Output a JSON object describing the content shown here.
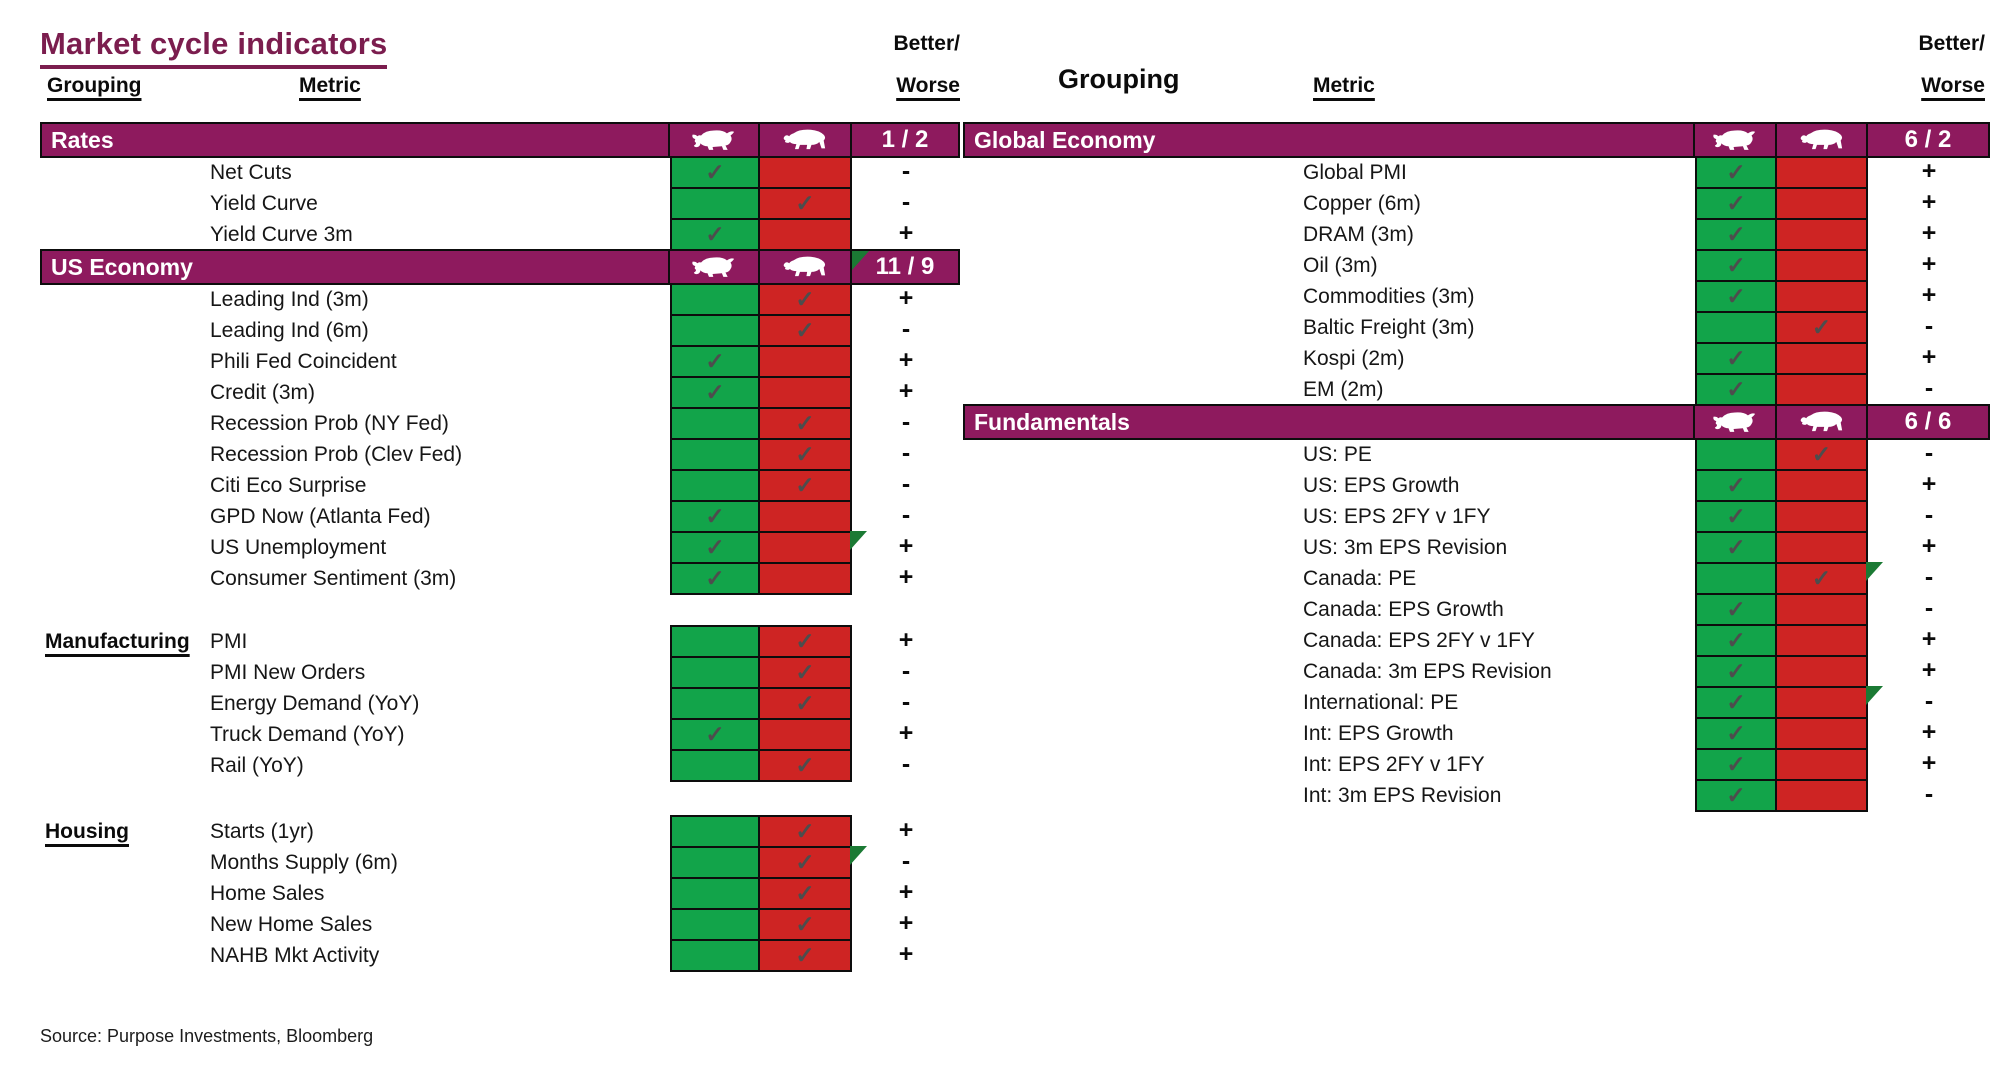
{
  "title": "Market cycle indicators",
  "source": "Source: Purpose Investments, Bloomberg",
  "column_headers": {
    "grouping": "Grouping",
    "metric": "Metric",
    "better": "Better/",
    "worse": "Worse"
  },
  "icons": {
    "bull": "bull-icon",
    "bear": "bear-icon",
    "flag": "flag-triangle-icon",
    "check_glyph": "✓"
  },
  "colors": {
    "band_purple": "#8E1A5E",
    "title_magenta": "#7B1D4E",
    "bull_green": "#12A44A",
    "bear_red": "#CE2423",
    "flag_green": "#1B7A34",
    "check_gray": "#4D4D4D"
  },
  "left_table": {
    "sections": [
      {
        "name": "Rates",
        "band": true,
        "score": "1 / 2",
        "score_flag": false,
        "rows": [
          {
            "metric": "Net Cuts",
            "check": "bull",
            "bw": "-",
            "flag": false
          },
          {
            "metric": "Yield Curve",
            "check": "bear",
            "bw": "-",
            "flag": false
          },
          {
            "metric": "Yield Curve 3m",
            "check": "bull",
            "bw": "+",
            "flag": false
          }
        ]
      },
      {
        "name": "US Economy",
        "band": true,
        "score": "11 / 9",
        "score_flag": true,
        "rows": [
          {
            "metric": "Leading Ind (3m)",
            "check": "bear",
            "bw": "+",
            "flag": false
          },
          {
            "metric": "Leading Ind (6m)",
            "check": "bear",
            "bw": "-",
            "flag": false
          },
          {
            "metric": "Phili Fed Coincident",
            "check": "bull",
            "bw": "+",
            "flag": false
          },
          {
            "metric": "Credit (3m)",
            "check": "bull",
            "bw": "+",
            "flag": false
          },
          {
            "metric": "Recession Prob (NY Fed)",
            "check": "bear",
            "bw": "-",
            "flag": false
          },
          {
            "metric": "Recession Prob (Clev Fed)",
            "check": "bear",
            "bw": "-",
            "flag": false
          },
          {
            "metric": "Citi Eco Surprise",
            "check": "bear",
            "bw": "-",
            "flag": false
          },
          {
            "metric": "GPD Now (Atlanta Fed)",
            "check": "bull",
            "bw": "-",
            "flag": false
          },
          {
            "metric": "US Unemployment",
            "check": "bull",
            "bw": "+",
            "flag": true
          },
          {
            "metric": "Consumer Sentiment (3m)",
            "check": "bull",
            "bw": "+",
            "flag": false
          }
        ]
      },
      {
        "name": "Manufacturing",
        "band": false,
        "score": "",
        "score_flag": false,
        "rows": [
          {
            "metric": "PMI",
            "check": "bear",
            "bw": "+",
            "flag": false
          },
          {
            "metric": "PMI New Orders",
            "check": "bear",
            "bw": "-",
            "flag": false
          },
          {
            "metric": "Energy Demand (YoY)",
            "check": "bear",
            "bw": "-",
            "flag": false
          },
          {
            "metric": "Truck Demand (YoY)",
            "check": "bull",
            "bw": "+",
            "flag": false
          },
          {
            "metric": "Rail (YoY)",
            "check": "bear",
            "bw": "-",
            "flag": false
          }
        ]
      },
      {
        "name": "Housing",
        "band": false,
        "score": "",
        "score_flag": false,
        "rows": [
          {
            "metric": "Starts (1yr)",
            "check": "bear",
            "bw": "+",
            "flag": false
          },
          {
            "metric": "Months Supply (6m)",
            "check": "bear",
            "bw": "-",
            "flag": true
          },
          {
            "metric": "Home Sales",
            "check": "bear",
            "bw": "+",
            "flag": false
          },
          {
            "metric": "New Home Sales",
            "check": "bear",
            "bw": "+",
            "flag": false
          },
          {
            "metric": "NAHB Mkt Activity",
            "check": "bear",
            "bw": "+",
            "flag": false
          }
        ]
      }
    ]
  },
  "right_table": {
    "sections": [
      {
        "name": "Global Economy",
        "band": true,
        "score": "6 / 2",
        "score_flag": false,
        "rows": [
          {
            "metric": "Global PMI",
            "check": "bull",
            "bw": "+",
            "flag": false
          },
          {
            "metric": "Copper (6m)",
            "check": "bull",
            "bw": "+",
            "flag": false
          },
          {
            "metric": "DRAM (3m)",
            "check": "bull",
            "bw": "+",
            "flag": false
          },
          {
            "metric": "Oil (3m)",
            "check": "bull",
            "bw": "+",
            "flag": false
          },
          {
            "metric": "Commodities (3m)",
            "check": "bull",
            "bw": "+",
            "flag": false
          },
          {
            "metric": "Baltic Freight (3m)",
            "check": "bear",
            "bw": "-",
            "flag": false
          },
          {
            "metric": "Kospi (2m)",
            "check": "bull",
            "bw": "+",
            "flag": false
          },
          {
            "metric": "EM (2m)",
            "check": "bull",
            "bw": "-",
            "flag": false
          }
        ]
      },
      {
        "name": "Fundamentals",
        "band": true,
        "score": "6 / 6",
        "score_flag": false,
        "rows": [
          {
            "metric": "US: PE",
            "check": "bear",
            "bw": "-",
            "flag": false
          },
          {
            "metric": "US: EPS Growth",
            "check": "bull",
            "bw": "+",
            "flag": false
          },
          {
            "metric": "US: EPS 2FY v 1FY",
            "check": "bull",
            "bw": "-",
            "flag": false
          },
          {
            "metric": "US: 3m EPS Revision",
            "check": "bull",
            "bw": "+",
            "flag": false
          },
          {
            "metric": "Canada: PE",
            "check": "bear",
            "bw": "-",
            "flag": true
          },
          {
            "metric": "Canada: EPS Growth",
            "check": "bull",
            "bw": "-",
            "flag": false
          },
          {
            "metric": "Canada: EPS 2FY v 1FY",
            "check": "bull",
            "bw": "+",
            "flag": false
          },
          {
            "metric": "Canada: 3m EPS Revision",
            "check": "bull",
            "bw": "+",
            "flag": false
          },
          {
            "metric": "International: PE",
            "check": "bull",
            "bw": "-",
            "flag": true
          },
          {
            "metric": "Int: EPS Growth",
            "check": "bull",
            "bw": "+",
            "flag": false
          },
          {
            "metric": "Int: EPS 2FY v 1FY",
            "check": "bull",
            "bw": "+",
            "flag": false
          },
          {
            "metric": "Int: 3m EPS Revision",
            "check": "bull",
            "bw": "-",
            "flag": false
          }
        ]
      }
    ]
  }
}
